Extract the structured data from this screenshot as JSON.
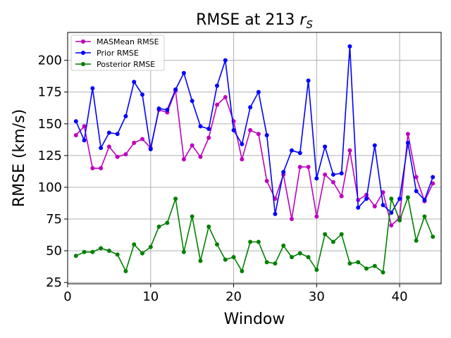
{
  "chart_data": {
    "type": "line",
    "title": "RMSE at 213",
    "title_sub": "r",
    "title_subscript": "S",
    "xlabel": "Window",
    "ylabel": "RMSE (km/s)",
    "xlim": [
      0,
      45
    ],
    "ylim": [
      24,
      222
    ],
    "xticks": [
      0,
      10,
      20,
      30,
      40
    ],
    "yticks": [
      25,
      50,
      75,
      100,
      125,
      150,
      175,
      200
    ],
    "grid": true,
    "legend_position": "top-left",
    "x": [
      1,
      2,
      3,
      4,
      5,
      6,
      7,
      8,
      9,
      10,
      11,
      12,
      13,
      14,
      15,
      16,
      17,
      18,
      19,
      20,
      21,
      22,
      23,
      24,
      25,
      26,
      27,
      28,
      29,
      30,
      31,
      32,
      33,
      34,
      35,
      36,
      37,
      38,
      39,
      40,
      41,
      42,
      43,
      44
    ],
    "series": [
      {
        "name": "MASMean RMSE",
        "color": "#bf00bf",
        "values": [
          141,
          148,
          115,
          115,
          132,
          124,
          126,
          135,
          138,
          131,
          161,
          159,
          176,
          122,
          133,
          124,
          139,
          165,
          171,
          152,
          122,
          145,
          142,
          105,
          91,
          110,
          75,
          116,
          116,
          77,
          110,
          104,
          93,
          129,
          90,
          94,
          85,
          96,
          70,
          76,
          142,
          108,
          89,
          103
        ]
      },
      {
        "name": "Prior RMSE",
        "color": "#0000ff",
        "values": [
          152,
          137,
          178,
          131,
          143,
          142,
          156,
          183,
          173,
          130,
          162,
          161,
          177,
          190,
          168,
          148,
          146,
          180,
          200,
          145,
          134,
          163,
          175,
          141,
          79,
          112,
          129,
          127,
          184,
          107,
          132,
          110,
          111,
          211,
          84,
          91,
          133,
          86,
          80,
          91,
          135,
          97,
          90,
          108
        ]
      },
      {
        "name": "Posterior RMSE",
        "color": "#008000",
        "values": [
          46,
          49,
          49,
          52,
          50,
          47,
          34,
          55,
          48,
          53,
          69,
          72,
          91,
          49,
          77,
          42,
          69,
          55,
          43,
          45,
          34,
          57,
          57,
          41,
          40,
          54,
          45,
          48,
          45,
          35,
          63,
          57,
          63,
          40,
          41,
          36,
          38,
          33,
          91,
          74,
          92,
          58,
          77,
          61
        ]
      }
    ]
  }
}
